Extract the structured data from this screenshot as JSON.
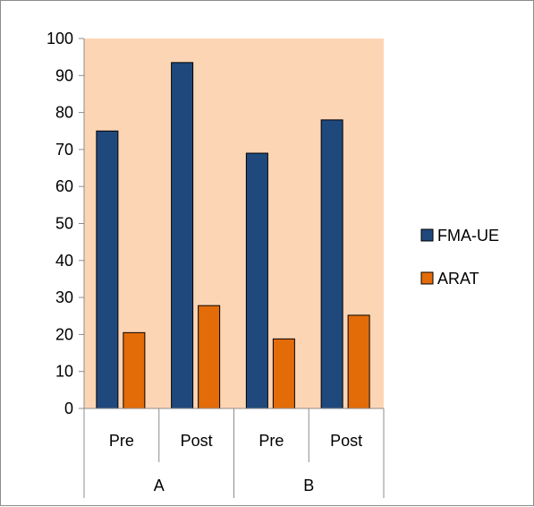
{
  "chart_data": {
    "type": "bar",
    "groups": [
      {
        "label": "A",
        "categories": [
          "Pre",
          "Post"
        ]
      },
      {
        "label": "B",
        "categories": [
          "Pre",
          "Post"
        ]
      }
    ],
    "categories": [
      "Pre",
      "Post",
      "Pre",
      "Post"
    ],
    "series": [
      {
        "name": "FMA-UE",
        "color": "#1f497d",
        "values": [
          75,
          93.5,
          69,
          78
        ]
      },
      {
        "name": "ARAT",
        "color": "#e36c09",
        "values": [
          20.5,
          27.8,
          18.8,
          25.2
        ]
      }
    ],
    "title": "",
    "xlabel": "",
    "ylabel": "",
    "ylim": [
      0,
      100
    ],
    "yticks": [
      0,
      10,
      20,
      30,
      40,
      50,
      60,
      70,
      80,
      90,
      100
    ],
    "grid": false,
    "plot_background": "#fcd5b5",
    "legend_position": "right"
  }
}
